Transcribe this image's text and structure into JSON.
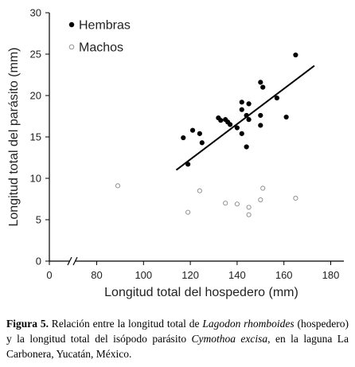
{
  "chart_data": {
    "type": "scatter",
    "xlabel": "Longitud total del hospedero (mm)",
    "ylabel": "Longitud total del parásito (mm)",
    "xlim": [
      0,
      180
    ],
    "ylim": [
      0,
      30
    ],
    "x_ticks": [
      "0",
      "80",
      "100",
      "120",
      "140",
      "160",
      "180"
    ],
    "y_ticks": [
      "0",
      "5",
      "10",
      "15",
      "20",
      "25",
      "30"
    ],
    "axis_break_between": [
      0,
      80
    ],
    "grid": false,
    "legend_position": "top-left",
    "series": [
      {
        "name": "Hembras",
        "marker": "filled-circle",
        "color": "#000000",
        "points": [
          [
            117,
            14.9
          ],
          [
            119,
            11.7
          ],
          [
            121,
            15.8
          ],
          [
            124,
            15.4
          ],
          [
            125,
            14.3
          ],
          [
            132,
            17.3
          ],
          [
            133,
            17.0
          ],
          [
            135,
            17.1
          ],
          [
            136,
            16.8
          ],
          [
            137,
            16.5
          ],
          [
            140,
            16.1
          ],
          [
            142,
            19.2
          ],
          [
            142,
            18.3
          ],
          [
            142,
            15.4
          ],
          [
            144,
            13.8
          ],
          [
            144,
            17.6
          ],
          [
            145,
            19.0
          ],
          [
            145,
            17.1
          ],
          [
            150,
            21.6
          ],
          [
            151,
            21.0
          ],
          [
            150,
            17.6
          ],
          [
            150,
            16.4
          ],
          [
            157,
            19.7
          ],
          [
            161,
            17.4
          ],
          [
            165,
            24.9
          ]
        ],
        "trendline": {
          "x1": 114,
          "y1": 11.0,
          "x2": 173,
          "y2": 23.6
        }
      },
      {
        "name": "Machos",
        "marker": "open-circle",
        "color": "#888888",
        "points": [
          [
            89,
            9.1
          ],
          [
            119,
            5.9
          ],
          [
            124,
            8.5
          ],
          [
            135,
            7.0
          ],
          [
            140,
            6.9
          ],
          [
            145,
            6.5
          ],
          [
            145,
            5.6
          ],
          [
            150,
            7.4
          ],
          [
            151,
            8.8
          ],
          [
            165,
            7.6
          ]
        ]
      }
    ]
  },
  "caption": {
    "label": "Figura 5.",
    "text_1": " Relación entre la longitud total de ",
    "species_1": "Lagodon rhomboides",
    "text_2": " (hospedero) y la longitud total del isópodo parásito ",
    "species_2": "Cymothoa excisa",
    "text_3": ", en la laguna La Carbonera, Yucatán, México."
  }
}
